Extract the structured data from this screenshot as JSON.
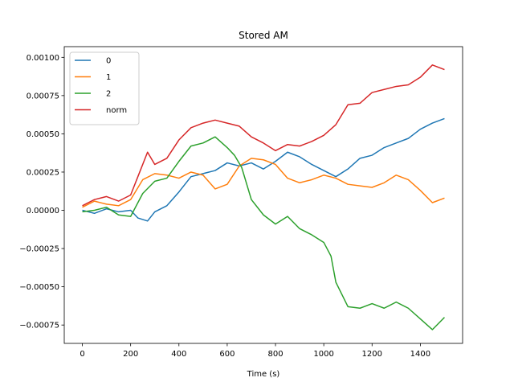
{
  "chart_data": {
    "type": "line",
    "title": "Stored AM",
    "xlabel": "Time (s)",
    "ylabel": "",
    "xlim": [
      -75,
      1575
    ],
    "ylim": [
      -0.00087,
      0.00107
    ],
    "xticks": [
      0,
      200,
      400,
      600,
      800,
      1000,
      1200,
      1400
    ],
    "xtick_labels": [
      "0",
      "200",
      "400",
      "600",
      "800",
      "1000",
      "1200",
      "1400"
    ],
    "yticks": [
      -0.00075,
      -0.0005,
      -0.00025,
      0.0,
      0.00025,
      0.0005,
      0.00075,
      0.001
    ],
    "ytick_labels": [
      "−0.00075",
      "−0.00050",
      "−0.00025",
      "0.00000",
      "0.00025",
      "0.00050",
      "0.00075",
      "0.00100"
    ],
    "grid": false,
    "legend_position": "top-left",
    "series": [
      {
        "name": "0",
        "color": "#1f77b4",
        "x": [
          0,
          50,
          100,
          150,
          200,
          230,
          270,
          300,
          350,
          400,
          450,
          500,
          550,
          600,
          650,
          700,
          750,
          800,
          850,
          900,
          950,
          1000,
          1050,
          1100,
          1150,
          1200,
          1250,
          1300,
          1350,
          1400,
          1450,
          1500
        ],
        "y": [
          0.0,
          -2e-05,
          1e-05,
          -1e-05,
          0.0,
          -5e-05,
          -7e-05,
          -1e-05,
          3e-05,
          0.00012,
          0.00022,
          0.00024,
          0.00026,
          0.00031,
          0.00029,
          0.00031,
          0.00027,
          0.00032,
          0.00038,
          0.00035,
          0.0003,
          0.00026,
          0.00022,
          0.00027,
          0.00034,
          0.00036,
          0.00041,
          0.00044,
          0.00047,
          0.00053,
          0.00057,
          0.0006
        ]
      },
      {
        "name": "1",
        "color": "#ff7f0e",
        "x": [
          0,
          50,
          100,
          150,
          200,
          250,
          300,
          350,
          400,
          450,
          500,
          550,
          600,
          650,
          700,
          750,
          800,
          850,
          900,
          950,
          1000,
          1050,
          1100,
          1150,
          1200,
          1250,
          1300,
          1350,
          1400,
          1450,
          1500
        ],
        "y": [
          2e-05,
          6e-05,
          4e-05,
          3e-05,
          7e-05,
          0.0002,
          0.00024,
          0.00023,
          0.00021,
          0.00025,
          0.00023,
          0.00014,
          0.00017,
          0.00029,
          0.00034,
          0.00033,
          0.0003,
          0.00021,
          0.00018,
          0.0002,
          0.00023,
          0.00021,
          0.00017,
          0.00016,
          0.00015,
          0.00018,
          0.00023,
          0.0002,
          0.00013,
          5e-05,
          8e-05
        ]
      },
      {
        "name": "2",
        "color": "#2ca02c",
        "x": [
          0,
          50,
          100,
          150,
          200,
          250,
          300,
          350,
          400,
          450,
          500,
          550,
          600,
          630,
          660,
          700,
          750,
          800,
          850,
          900,
          950,
          1000,
          1030,
          1050,
          1100,
          1150,
          1200,
          1250,
          1300,
          1350,
          1400,
          1450,
          1500
        ],
        "y": [
          -1e-05,
          0.0,
          2e-05,
          -3e-05,
          -4e-05,
          0.00011,
          0.00019,
          0.00021,
          0.00032,
          0.00042,
          0.00044,
          0.00048,
          0.00041,
          0.00036,
          0.00028,
          7e-05,
          -3e-05,
          -9e-05,
          -4e-05,
          -0.00012,
          -0.00016,
          -0.00021,
          -0.0003,
          -0.00047,
          -0.00063,
          -0.00064,
          -0.00061,
          -0.00064,
          -0.0006,
          -0.00064,
          -0.00071,
          -0.00078,
          -0.0007
        ]
      },
      {
        "name": "norm",
        "color": "#d62728",
        "x": [
          0,
          50,
          100,
          150,
          200,
          230,
          270,
          300,
          350,
          400,
          450,
          500,
          550,
          600,
          650,
          700,
          750,
          800,
          850,
          900,
          950,
          1000,
          1050,
          1100,
          1150,
          1200,
          1250,
          1300,
          1350,
          1400,
          1450,
          1500
        ],
        "y": [
          3e-05,
          7e-05,
          9e-05,
          6e-05,
          0.0001,
          0.00022,
          0.00038,
          0.0003,
          0.00034,
          0.00046,
          0.00054,
          0.00057,
          0.00059,
          0.00057,
          0.00055,
          0.00048,
          0.00044,
          0.00039,
          0.00043,
          0.00042,
          0.00045,
          0.00049,
          0.00056,
          0.00069,
          0.0007,
          0.00077,
          0.00079,
          0.00081,
          0.00082,
          0.00087,
          0.00095,
          0.00092
        ]
      }
    ]
  }
}
